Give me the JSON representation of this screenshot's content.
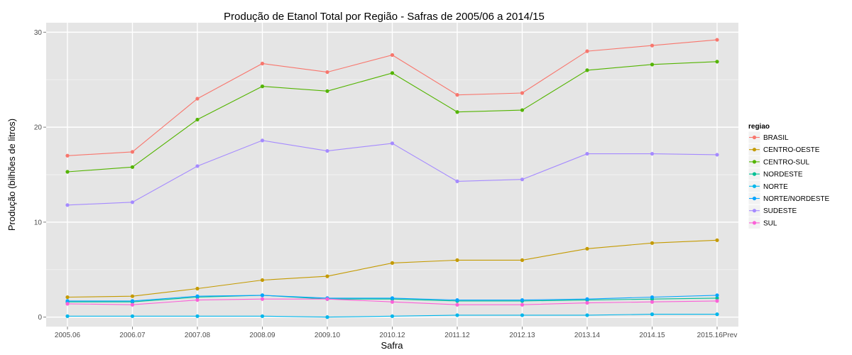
{
  "chart_data": {
    "type": "line",
    "title": "Produção de Etanol Total por Região - Safras de 2005/06 a 2014/15",
    "xlabel": "Safra",
    "ylabel": "Produção (bilhões de litros)",
    "categories": [
      "2005.06",
      "2006.07",
      "2007.08",
      "2008.09",
      "2009.10",
      "2010.12",
      "2011.12",
      "2012.13",
      "2013.14",
      "2014.15",
      "2015.16Prev"
    ],
    "yticks": [
      0,
      10,
      20,
      30
    ],
    "ylim": [
      -1,
      31
    ],
    "grid": true,
    "legend": {
      "title": "regiao",
      "placement": "right"
    },
    "series": [
      {
        "name": "BRASIL",
        "color": "#F8766D",
        "values": [
          17.0,
          17.4,
          23.0,
          26.7,
          25.8,
          27.6,
          23.4,
          23.6,
          28.0,
          28.6,
          29.2
        ]
      },
      {
        "name": "CENTRO-OESTE",
        "color": "#C49A00",
        "values": [
          2.1,
          2.2,
          3.0,
          3.9,
          4.3,
          5.7,
          6.0,
          6.0,
          7.2,
          7.8,
          8.1
        ]
      },
      {
        "name": "CENTRO-SUL",
        "color": "#53B400",
        "values": [
          15.3,
          15.8,
          20.8,
          24.3,
          23.8,
          25.7,
          21.6,
          21.8,
          26.0,
          26.6,
          26.9
        ]
      },
      {
        "name": "NORDESTE",
        "color": "#00C094",
        "values": [
          1.6,
          1.6,
          2.1,
          2.3,
          1.9,
          1.9,
          1.7,
          1.7,
          1.8,
          1.9,
          2.0
        ]
      },
      {
        "name": "NORTE",
        "color": "#00B6EB",
        "values": [
          0.1,
          0.1,
          0.1,
          0.1,
          0.0,
          0.1,
          0.2,
          0.2,
          0.2,
          0.3,
          0.3
        ]
      },
      {
        "name": "NORTE/NORDESTE",
        "color": "#06A4FF",
        "values": [
          1.7,
          1.7,
          2.2,
          2.3,
          2.0,
          2.0,
          1.8,
          1.8,
          1.9,
          2.1,
          2.3
        ]
      },
      {
        "name": "SUDESTE",
        "color": "#A58AFF",
        "values": [
          11.8,
          12.1,
          15.9,
          18.6,
          17.5,
          18.3,
          14.3,
          14.5,
          17.2,
          17.2,
          17.1
        ]
      },
      {
        "name": "SUL",
        "color": "#FB61D7",
        "values": [
          1.4,
          1.3,
          1.8,
          1.9,
          1.9,
          1.6,
          1.3,
          1.3,
          1.5,
          1.6,
          1.7
        ]
      }
    ]
  },
  "theme": {
    "panel_bg": "#E5E5E5",
    "grid_major": "#FFFFFF",
    "grid_minor": "#F2F2F2"
  }
}
